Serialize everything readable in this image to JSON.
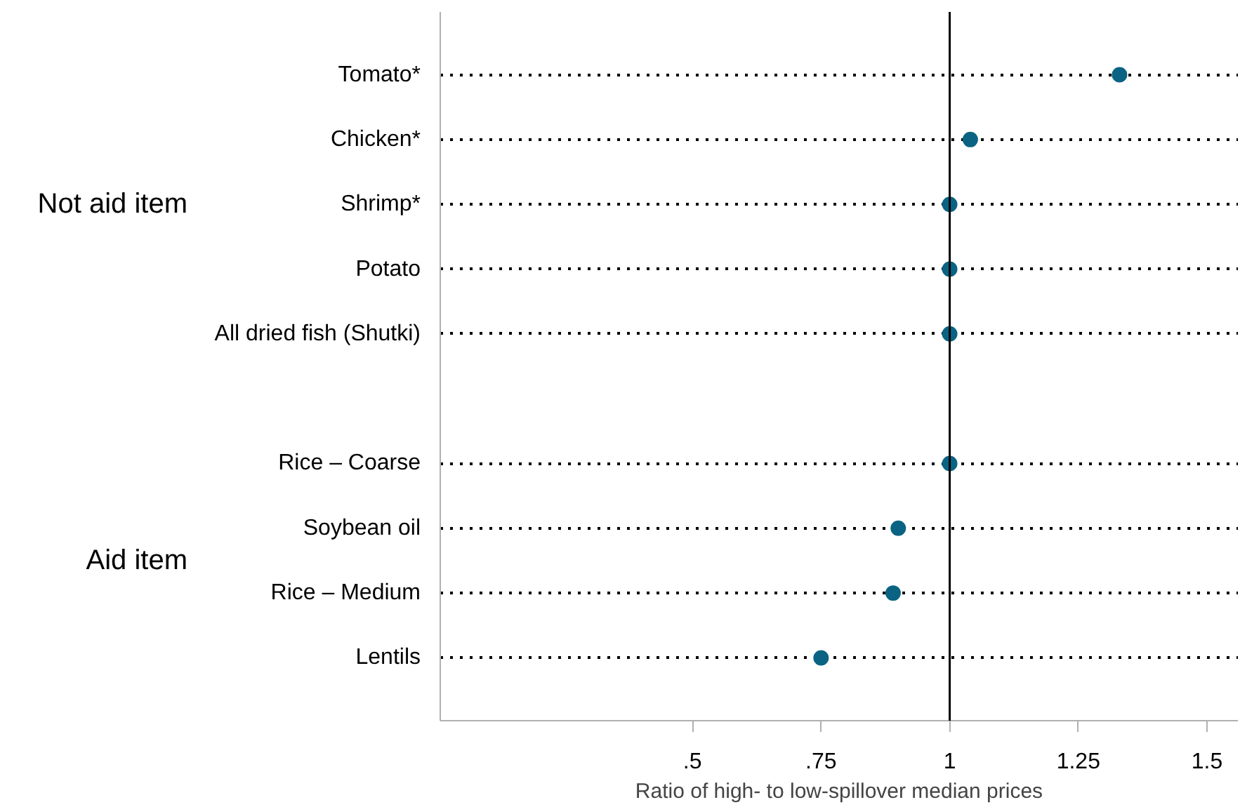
{
  "chart_data": {
    "type": "scatter",
    "orientation": "horizontal",
    "xlabel": "Ratio of high- to low-spillover median prices",
    "categories": [
      "Tomato*",
      "Chicken*",
      "Shrimp*",
      "Potato",
      "All dried fish (Shutki)",
      null,
      "Rice – Coarse",
      "Soybean oil",
      "Rice – Medium",
      "Lentils"
    ],
    "values": [
      1.33,
      1.04,
      1.0,
      1.0,
      1.0,
      null,
      1.0,
      0.9,
      0.89,
      0.75
    ],
    "color": "#0b6383",
    "marker": "circle",
    "xlim": [
      0.01,
      1.56
    ],
    "xticks": [
      {
        "value": 0.5,
        "label": ".5"
      },
      {
        "value": 0.75,
        "label": ".75"
      },
      1,
      1.25,
      1.5
    ],
    "grid": "y",
    "ref_lines": [
      {
        "axis": "x",
        "value": 1,
        "color": "#000000"
      }
    ],
    "annotations": [
      "Not aid item",
      "Aid item"
    ]
  }
}
